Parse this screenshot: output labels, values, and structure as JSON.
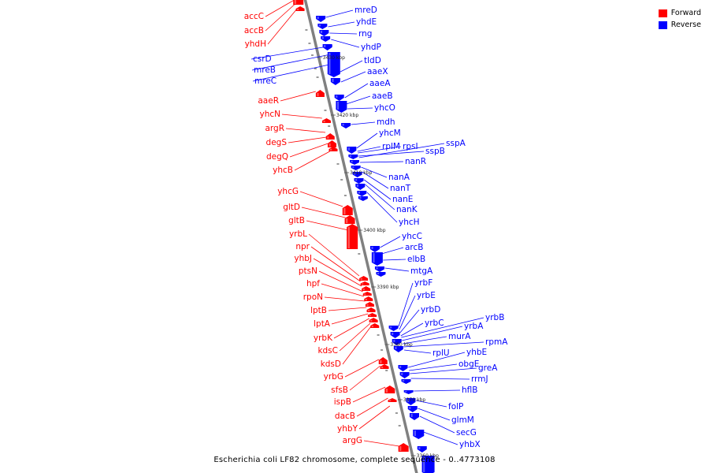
{
  "title": "Escherichia coli LF82 chromosome, complete sequence - 0..4773108",
  "colors": {
    "forward": "#ff0000",
    "reverse": "#0000ff",
    "backbone": "#808080"
  },
  "legend": [
    {
      "label": "Forward",
      "color": "#ff0000"
    },
    {
      "label": "Reverse",
      "color": "#0000ff"
    }
  ],
  "ticks": [
    "3430 kbp",
    "3420 kbp",
    "3410 kbp",
    "3400 kbp",
    "3390 kbp",
    "3380 kbp",
    "3370 kbp",
    "3360 kbp"
  ],
  "forward_genes": [
    "accC",
    "accB",
    "yhdH",
    "aaeR",
    "yhcN",
    "argR",
    "degS",
    "degQ",
    "yhcB",
    "yhcG",
    "gltD",
    "gltB",
    "yrbL",
    "npr",
    "yhbJ",
    "ptsN",
    "hpf",
    "rpoN",
    "lptB",
    "lptA",
    "yrbK",
    "kdsC",
    "kdsD",
    "yrbG",
    "sfsB",
    "ispB",
    "dacB",
    "yhbY",
    "argG"
  ],
  "reverse_genes": [
    "mreD",
    "yhdE",
    "rng",
    "yhdP",
    "csrD",
    "mreB",
    "mreC",
    "tldD",
    "aaeX",
    "aaeA",
    "aaeB",
    "yhcO",
    "mdh",
    "yhcM",
    "rplM",
    "rpsI",
    "sspB",
    "sspA",
    "nanR",
    "nanA",
    "nanT",
    "nanE",
    "nanK",
    "yhcH",
    "yhcC",
    "arcB",
    "elbB",
    "mtgA",
    "yrbF",
    "yrbE",
    "yrbD",
    "yrbC",
    "yrbB",
    "yrbA",
    "murA",
    "rpmA",
    "rplU",
    "yhbE",
    "obgE",
    "greA",
    "rrmJ",
    "hflB",
    "folP",
    "glmM",
    "secG",
    "yhbX"
  ]
}
